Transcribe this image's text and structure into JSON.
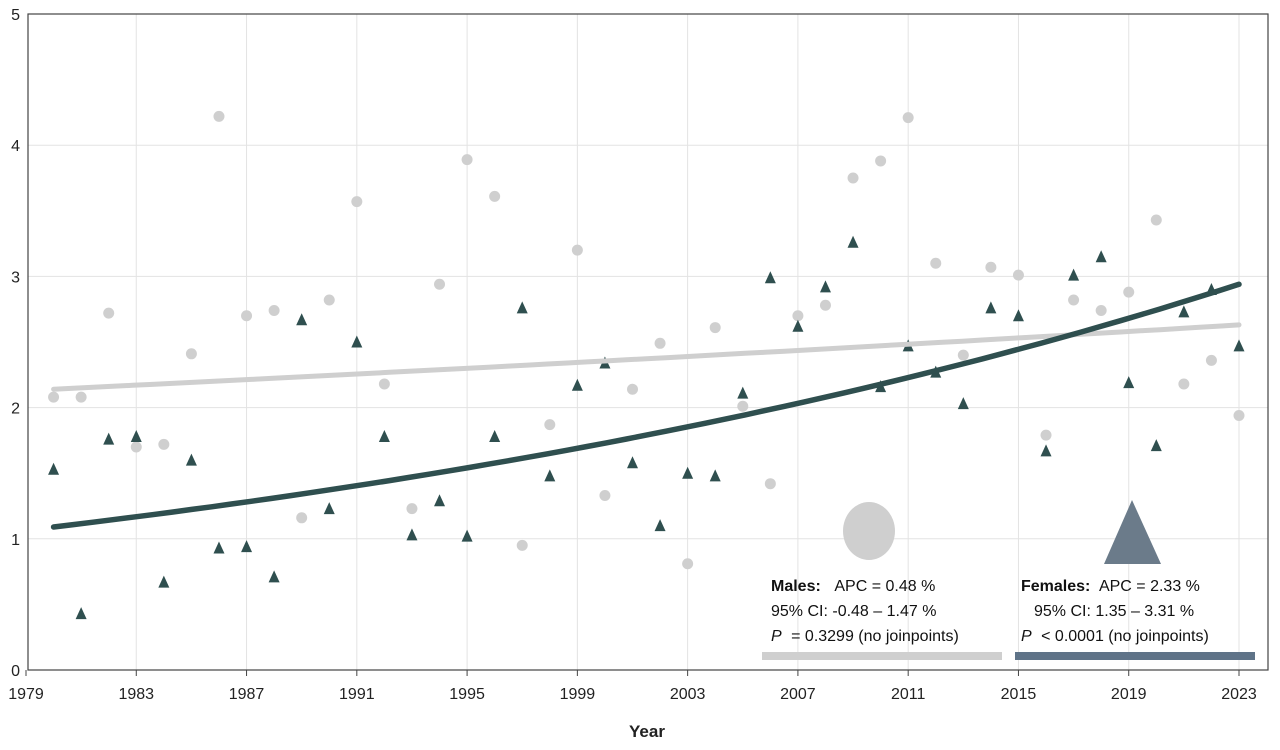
{
  "chart_data": {
    "type": "scatter",
    "xlabel": "Year",
    "ylabel": "",
    "xlim": [
      1979,
      2024
    ],
    "ylim": [
      0,
      5
    ],
    "x_ticks": [
      "1979",
      "1983",
      "1987",
      "1991",
      "1995",
      "1999",
      "2003",
      "2007",
      "2011",
      "2015",
      "2019",
      "2023"
    ],
    "y_ticks": [
      "0",
      "1",
      "2",
      "3",
      "4",
      "5"
    ],
    "grid": true,
    "colors": {
      "males": "#cfcfcf",
      "females": "#2f4f4f",
      "females_legend": "#6b7b8a",
      "grid": "#e3e3e3"
    },
    "series": [
      {
        "key": "males",
        "marker": "circle",
        "x": [
          1980,
          1981,
          1982,
          1983,
          1984,
          1985,
          1986,
          1987,
          1988,
          1989,
          1990,
          1991,
          1992,
          1993,
          1994,
          1995,
          1996,
          1997,
          1998,
          1999,
          2000,
          2001,
          2002,
          2003,
          2004,
          2005,
          2006,
          2007,
          2008,
          2009,
          2010,
          2011,
          2012,
          2013,
          2014,
          2015,
          2016,
          2017,
          2018,
          2019,
          2020,
          2021,
          2022,
          2023
        ],
        "y": [
          2.08,
          2.08,
          2.72,
          1.7,
          1.72,
          2.41,
          4.22,
          2.7,
          2.74,
          1.16,
          2.82,
          3.57,
          2.18,
          1.23,
          2.94,
          3.89,
          3.61,
          0.95,
          1.87,
          3.2,
          1.33,
          2.14,
          2.49,
          0.81,
          2.61,
          2.01,
          1.42,
          2.7,
          2.78,
          3.75,
          3.88,
          4.21,
          3.1,
          2.4,
          3.07,
          3.01,
          1.79,
          2.82,
          2.74,
          2.88,
          3.43,
          2.18,
          2.36,
          1.94
        ],
        "trend": {
          "start": 2.14,
          "end": 2.63
        }
      },
      {
        "key": "females",
        "marker": "triangle",
        "x": [
          1980,
          1981,
          1982,
          1983,
          1984,
          1985,
          1986,
          1987,
          1988,
          1989,
          1990,
          1991,
          1992,
          1993,
          1994,
          1995,
          1996,
          1997,
          1998,
          1999,
          2000,
          2001,
          2002,
          2003,
          2004,
          2005,
          2006,
          2007,
          2008,
          2009,
          2010,
          2011,
          2012,
          2013,
          2014,
          2015,
          2016,
          2017,
          2018,
          2019,
          2020,
          2021,
          2022,
          2023
        ],
        "y": [
          1.53,
          0.43,
          1.76,
          1.78,
          0.67,
          1.6,
          0.93,
          0.94,
          0.71,
          2.67,
          1.23,
          2.5,
          1.78,
          1.03,
          1.29,
          1.02,
          1.78,
          2.76,
          1.48,
          2.17,
          2.34,
          1.58,
          1.1,
          1.5,
          1.48,
          2.11,
          2.99,
          2.62,
          2.92,
          3.26,
          2.16,
          2.47,
          2.27,
          2.03,
          2.76,
          2.7,
          1.67,
          3.01,
          3.15,
          2.19,
          1.71,
          2.73,
          2.9,
          2.47
        ],
        "trend": {
          "start": 1.09,
          "end": 2.94
        }
      }
    ],
    "legend": {
      "males": {
        "title": "Males:",
        "apc": "APC = 0.48 %",
        "ci": "95% CI: -0.48 – 1.47 %",
        "p_symbol": "P",
        "p_text": "= 0.3299 (no joinpoints)"
      },
      "females": {
        "title": "Females:",
        "apc": "APC = 2.33 %",
        "ci": "95% CI: 1.35 – 3.31 %",
        "p_symbol": "P",
        "p_text": "< 0.0001 (no joinpoints)"
      }
    }
  }
}
